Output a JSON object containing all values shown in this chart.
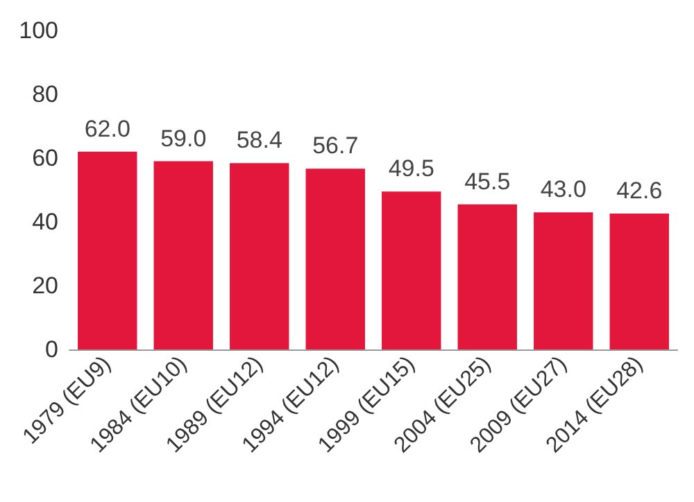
{
  "chart_data": {
    "type": "bar",
    "categories": [
      "1979 (EU9)",
      "1984 (EU10)",
      "1989 (EU12)",
      "1994 (EU12)",
      "1999 (EU15)",
      "2004 (EU25)",
      "2009 (EU27)",
      "2014 (EU28)"
    ],
    "values": [
      62.0,
      59.0,
      58.4,
      56.7,
      49.5,
      45.5,
      43.0,
      42.6
    ],
    "value_labels": [
      "62.0",
      "59.0",
      "58.4",
      "56.7",
      "49.5",
      "45.5",
      "43.0",
      "42.6"
    ],
    "color": "#e2173b",
    "ylim": [
      0,
      100
    ],
    "yticks": [
      0,
      20,
      40,
      60,
      80,
      100
    ],
    "grid": false
  }
}
